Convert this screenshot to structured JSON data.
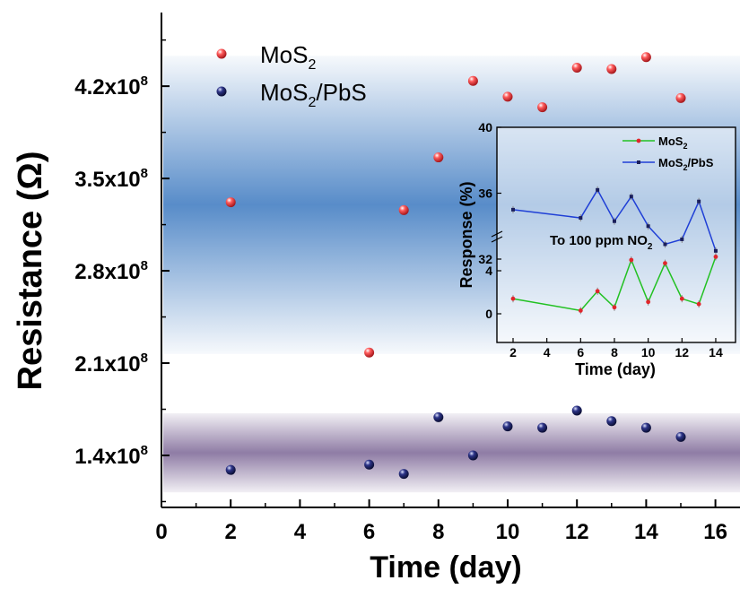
{
  "chart_data": [
    {
      "type": "scatter",
      "xlabel": "Time (day)",
      "ylabel": "Resistance (Ω)",
      "xlim": [
        0,
        17
      ],
      "ylim": [
        0.56,
        5.1
      ],
      "x_ticks": [
        "0",
        "2",
        "4",
        "6",
        "8",
        "10",
        "12",
        "14",
        "16"
      ],
      "y_ticks": [
        {
          "mantissa": "1.4x10",
          "exp": "8",
          "value": 1.4
        },
        {
          "mantissa": "2.1x10",
          "exp": "8",
          "value": 2.1
        },
        {
          "mantissa": "2.8x10",
          "exp": "8",
          "value": 2.8
        },
        {
          "mantissa": "3.5x10",
          "exp": "8",
          "value": 3.5
        },
        {
          "mantissa": "4.2x10",
          "exp": "8",
          "value": 4.2
        }
      ],
      "y_unit": "×10^8 Ω",
      "bands": [
        {
          "from": 2.17,
          "to": 4.43,
          "color": "#4f86c6"
        },
        {
          "from": 1.12,
          "to": 1.72,
          "color": "#7b6595"
        }
      ],
      "series": [
        {
          "name_main": "MoS",
          "name_sub": "2",
          "name_tail": "",
          "color": "#e0262c",
          "x": [
            2,
            6,
            7,
            8,
            9,
            10,
            11,
            12,
            13,
            14,
            15
          ],
          "y": [
            3.32,
            2.18,
            3.26,
            3.66,
            4.24,
            4.12,
            4.04,
            4.34,
            4.33,
            4.42,
            4.11
          ]
        },
        {
          "name_main": "MoS",
          "name_sub": "2",
          "name_tail": "/PbS",
          "color": "#1a1f5c",
          "x": [
            2,
            6,
            7,
            8,
            9,
            10,
            11,
            12,
            13,
            14,
            15
          ],
          "y": [
            1.29,
            1.33,
            1.26,
            1.69,
            1.4,
            1.62,
            1.61,
            1.74,
            1.66,
            1.61,
            1.54
          ]
        }
      ]
    },
    {
      "type": "line",
      "xlabel": "Time (day)",
      "ylabel": "Response (%)",
      "annotation_main": "To 100 ppm NO",
      "annotation_sub": "2",
      "x_ticks": [
        "2",
        "4",
        "6",
        "8",
        "10",
        "12",
        "14"
      ],
      "upper_ticks": [
        "32",
        "36",
        "40"
      ],
      "lower_ticks": [
        "0",
        "4"
      ],
      "xlim": [
        1.4,
        14.8
      ],
      "upper_ylim": [
        31.5,
        40
      ],
      "lower_ylim": [
        -1.8,
        6
      ],
      "series": [
        {
          "name_main": "MoS",
          "name_sub": "2",
          "name_tail": "",
          "color": "#22c122",
          "marker": "#e0262c",
          "x": [
            2,
            6,
            7,
            8,
            9,
            10,
            11,
            12,
            13,
            14
          ],
          "y": [
            1.4,
            0.3,
            2.1,
            0.6,
            5.0,
            1.1,
            4.7,
            1.4,
            0.9,
            5.3
          ]
        },
        {
          "name_main": "MoS",
          "name_sub": "2",
          "name_tail": "/PbS",
          "color": "#1f3fd6",
          "marker": "#1a1f5c",
          "x": [
            2,
            6,
            7,
            8,
            9,
            10,
            11,
            12,
            13,
            14
          ],
          "y": [
            35.0,
            34.5,
            36.2,
            34.3,
            35.8,
            34.0,
            32.9,
            33.2,
            35.5,
            32.5
          ]
        }
      ]
    }
  ]
}
